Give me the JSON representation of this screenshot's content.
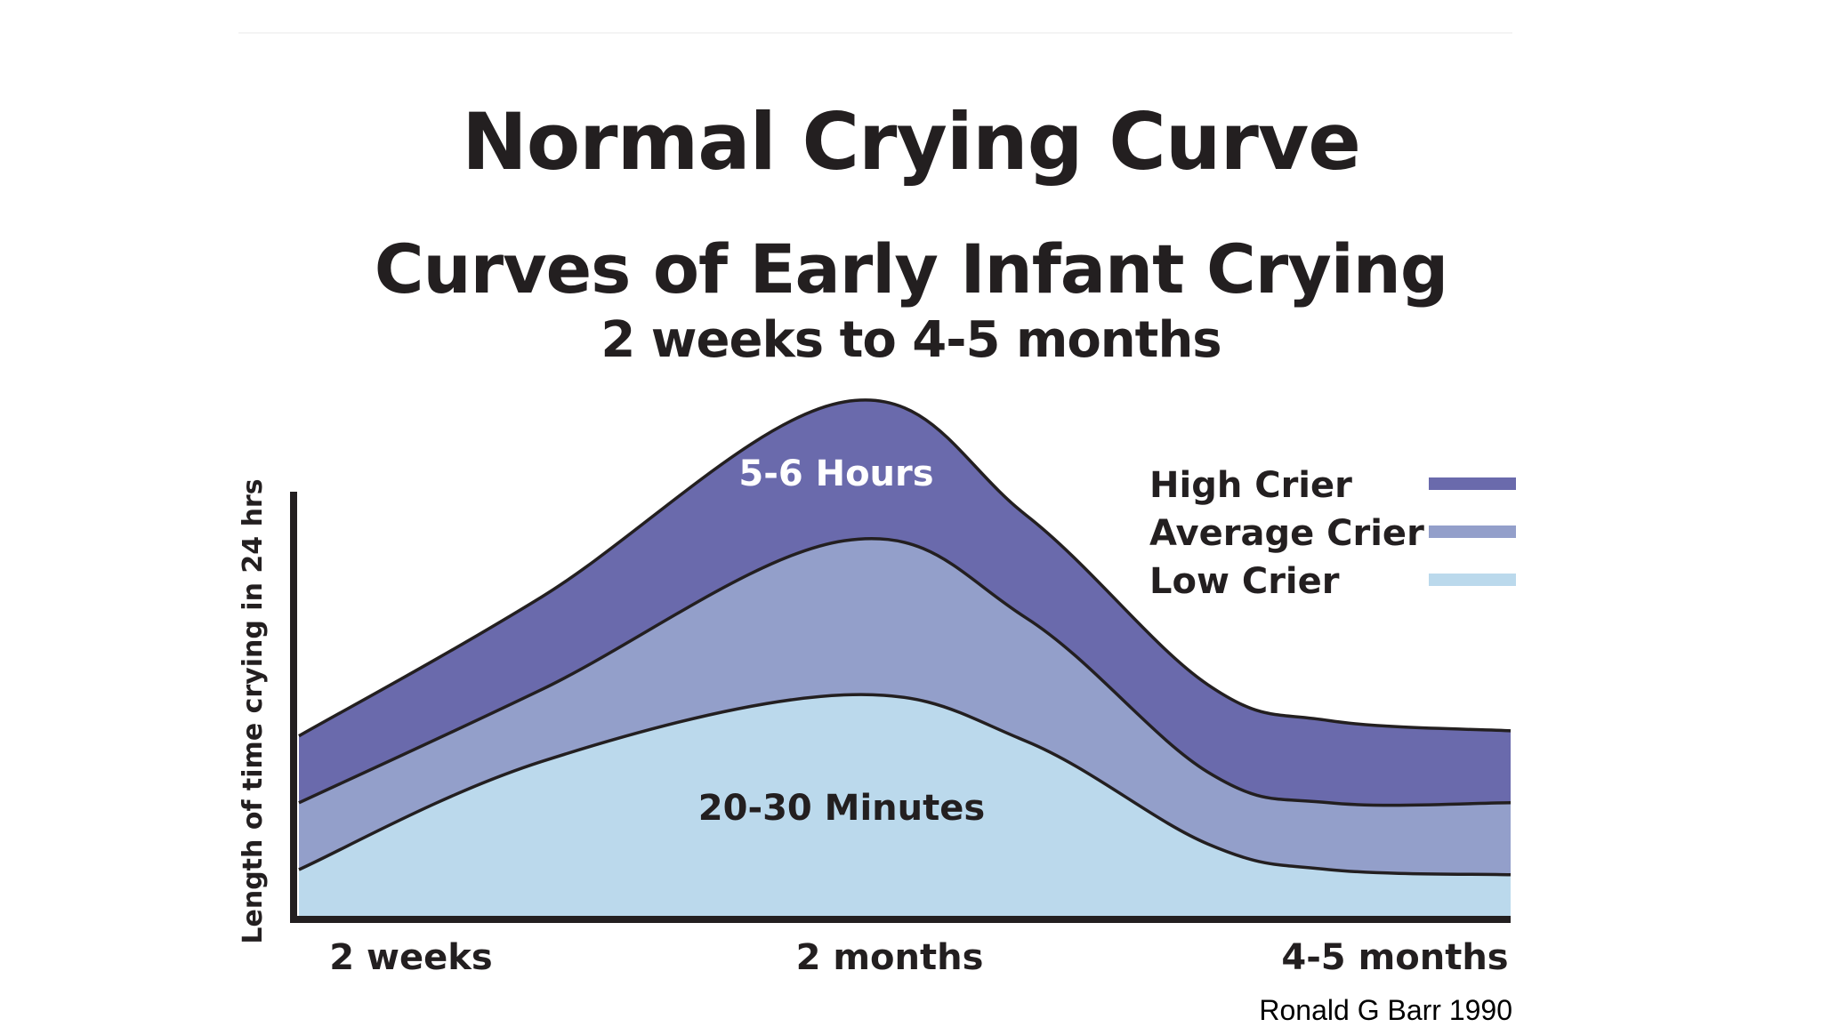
{
  "slide": {
    "title": "Normal Crying Curve",
    "source_credit": "Ronald G Barr 1990"
  },
  "chart_data": {
    "type": "area",
    "title": "Curves of Early Infant Crying",
    "subtitle": "2 weeks to 4-5 months",
    "ylabel": "Length of time crying in 24 hrs",
    "xlabel": "",
    "x_ticks": [
      "2 weeks",
      "2 months",
      "4-5 months"
    ],
    "x": [
      0,
      0.2,
      0.45,
      0.6,
      0.75,
      0.85,
      1.0
    ],
    "ylim": [
      0,
      1
    ],
    "series": [
      {
        "name": "High Crier",
        "color": "#6a6aac",
        "values": [
          0.35,
          0.62,
          1.0,
          0.78,
          0.45,
          0.38,
          0.36
        ]
      },
      {
        "name": "Average Crier",
        "color": "#939fca",
        "values": [
          0.22,
          0.44,
          0.73,
          0.58,
          0.28,
          0.22,
          0.22
        ]
      },
      {
        "name": "Low Crier",
        "color": "#bbd9ec",
        "values": [
          0.09,
          0.3,
          0.43,
          0.34,
          0.14,
          0.09,
          0.08
        ]
      }
    ],
    "annotations": {
      "high_peak": "5-6 Hours",
      "low_body": "20-30 Minutes"
    },
    "legend_position": "top-right",
    "grid": false
  }
}
